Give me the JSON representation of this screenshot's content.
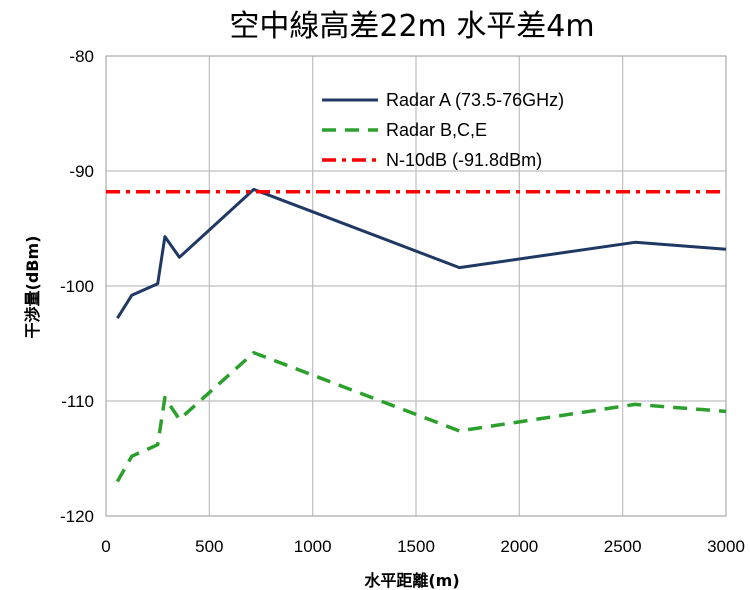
{
  "chart_data": {
    "type": "line",
    "title": "空中線高差22m 水平差4m",
    "xlabel": "水平距離(m)",
    "ylabel": "干渉量(dBm)",
    "xlim": [
      0,
      3000
    ],
    "ylim": [
      -120,
      -80
    ],
    "x_ticks": [
      0,
      500,
      1000,
      1500,
      2000,
      2500,
      3000
    ],
    "y_ticks": [
      -80,
      -90,
      -100,
      -110,
      -120
    ],
    "grid": true,
    "legend_position": "top-right",
    "series": [
      {
        "name": "Radar A (73.5-76GHz)",
        "color": "#1f3864",
        "style": "solid",
        "points": [
          [
            55,
            -102.8
          ],
          [
            125,
            -100.8
          ],
          [
            250,
            -99.8
          ],
          [
            285,
            -95.7
          ],
          [
            355,
            -97.5
          ],
          [
            715,
            -91.6
          ],
          [
            1710,
            -98.4
          ],
          [
            2560,
            -96.2
          ],
          [
            3000,
            -96.8
          ]
        ]
      },
      {
        "name": "Radar B,C,E",
        "color": "#2ca02c",
        "style": "dashed",
        "points": [
          [
            55,
            -117
          ],
          [
            125,
            -114.8
          ],
          [
            250,
            -113.8
          ],
          [
            285,
            -109.7
          ],
          [
            355,
            -111.6
          ],
          [
            715,
            -105.8
          ],
          [
            1710,
            -112.6
          ],
          [
            2560,
            -110.3
          ],
          [
            3000,
            -110.9
          ]
        ]
      },
      {
        "name": "N-10dB (-91.8dBm)",
        "color": "#ff0000",
        "style": "dash-dot",
        "points": [
          [
            0,
            -91.8
          ],
          [
            3000,
            -91.8
          ]
        ]
      }
    ]
  }
}
